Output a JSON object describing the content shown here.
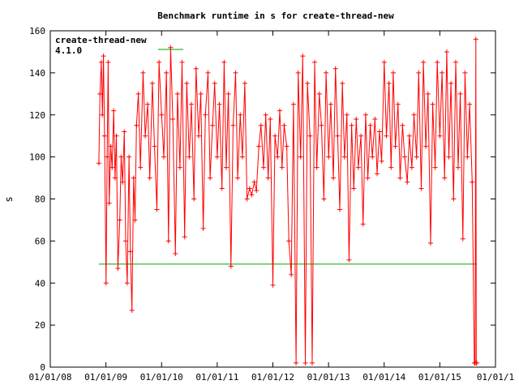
{
  "chart_data": {
    "type": "line",
    "title": "Benchmark runtime in s for create-thread-new",
    "xlabel": "",
    "ylabel": "s",
    "x_tick_labels": [
      "01/01/08",
      "01/01/09",
      "01/01/10",
      "01/01/11",
      "01/01/12",
      "01/01/13",
      "01/01/14",
      "01/01/15",
      "01/01/1"
    ],
    "y_ticks": [
      0,
      20,
      40,
      60,
      80,
      100,
      120,
      140,
      160
    ],
    "xlim": [
      "2008-01-01",
      "2016-01-01"
    ],
    "ylim": [
      0,
      160
    ],
    "grid": false,
    "legend_position": "top-left",
    "legend_title": "create-thread-new",
    "colors": {
      "series_main": "#ff0000",
      "series_reference": "#00a000",
      "axis": "#000000"
    },
    "series": [
      {
        "name": "",
        "color": "#ff0000",
        "marker": "plus",
        "points": [
          [
            "2008-11-15",
            97
          ],
          [
            "2008-11-22",
            130
          ],
          [
            "2008-12-01",
            145
          ],
          [
            "2008-12-08",
            120
          ],
          [
            "2008-12-15",
            148
          ],
          [
            "2008-12-22",
            110
          ],
          [
            "2009-01-01",
            40
          ],
          [
            "2009-01-08",
            100
          ],
          [
            "2009-01-15",
            145
          ],
          [
            "2009-01-22",
            78
          ],
          [
            "2009-02-01",
            105
          ],
          [
            "2009-02-10",
            95
          ],
          [
            "2009-02-20",
            122
          ],
          [
            "2009-03-01",
            90
          ],
          [
            "2009-03-10",
            110
          ],
          [
            "2009-03-20",
            47
          ],
          [
            "2009-04-01",
            70
          ],
          [
            "2009-04-10",
            100
          ],
          [
            "2009-04-20",
            88
          ],
          [
            "2009-05-01",
            112
          ],
          [
            "2009-05-10",
            60
          ],
          [
            "2009-05-20",
            40
          ],
          [
            "2009-06-01",
            100
          ],
          [
            "2009-06-10",
            55
          ],
          [
            "2009-06-20",
            27
          ],
          [
            "2009-07-01",
            90
          ],
          [
            "2009-07-10",
            70
          ],
          [
            "2009-07-20",
            115
          ],
          [
            "2009-08-01",
            130
          ],
          [
            "2009-08-15",
            95
          ],
          [
            "2009-09-01",
            140
          ],
          [
            "2009-09-15",
            110
          ],
          [
            "2009-10-01",
            125
          ],
          [
            "2009-10-15",
            90
          ],
          [
            "2009-11-01",
            135
          ],
          [
            "2009-11-15",
            105
          ],
          [
            "2009-12-01",
            75
          ],
          [
            "2009-12-15",
            145
          ],
          [
            "2010-01-01",
            120
          ],
          [
            "2010-01-15",
            100
          ],
          [
            "2010-02-01",
            140
          ],
          [
            "2010-02-15",
            60
          ],
          [
            "2010-03-01",
            152
          ],
          [
            "2010-03-15",
            118
          ],
          [
            "2010-04-01",
            54
          ],
          [
            "2010-04-15",
            130
          ],
          [
            "2010-05-01",
            95
          ],
          [
            "2010-05-15",
            145
          ],
          [
            "2010-06-01",
            62
          ],
          [
            "2010-06-15",
            135
          ],
          [
            "2010-07-01",
            100
          ],
          [
            "2010-07-15",
            125
          ],
          [
            "2010-08-01",
            80
          ],
          [
            "2010-08-15",
            142
          ],
          [
            "2010-09-01",
            110
          ],
          [
            "2010-09-15",
            130
          ],
          [
            "2010-10-01",
            66
          ],
          [
            "2010-10-15",
            120
          ],
          [
            "2010-11-01",
            140
          ],
          [
            "2010-11-15",
            90
          ],
          [
            "2010-12-01",
            115
          ],
          [
            "2010-12-15",
            135
          ],
          [
            "2011-01-01",
            100
          ],
          [
            "2011-01-15",
            125
          ],
          [
            "2011-02-01",
            85
          ],
          [
            "2011-02-15",
            145
          ],
          [
            "2011-03-01",
            95
          ],
          [
            "2011-03-15",
            130
          ],
          [
            "2011-04-01",
            48
          ],
          [
            "2011-04-15",
            115
          ],
          [
            "2011-05-01",
            140
          ],
          [
            "2011-05-15",
            90
          ],
          [
            "2011-06-01",
            120
          ],
          [
            "2011-06-15",
            100
          ],
          [
            "2011-07-01",
            135
          ],
          [
            "2011-07-15",
            80
          ],
          [
            "2011-08-01",
            85
          ],
          [
            "2011-08-15",
            82
          ],
          [
            "2011-09-01",
            88
          ],
          [
            "2011-09-15",
            84
          ],
          [
            "2011-10-01",
            105
          ],
          [
            "2011-10-15",
            115
          ],
          [
            "2011-11-01",
            95
          ],
          [
            "2011-11-15",
            120
          ],
          [
            "2011-12-01",
            90
          ],
          [
            "2011-12-15",
            118
          ],
          [
            "2012-01-01",
            39
          ],
          [
            "2012-01-15",
            110
          ],
          [
            "2012-02-01",
            100
          ],
          [
            "2012-02-15",
            122
          ],
          [
            "2012-03-01",
            95
          ],
          [
            "2012-03-15",
            115
          ],
          [
            "2012-04-01",
            105
          ],
          [
            "2012-04-15",
            60
          ],
          [
            "2012-05-01",
            44
          ],
          [
            "2012-05-15",
            125
          ],
          [
            "2012-06-01",
            2
          ],
          [
            "2012-06-15",
            140
          ],
          [
            "2012-07-01",
            100
          ],
          [
            "2012-07-15",
            148
          ],
          [
            "2012-08-01",
            2
          ],
          [
            "2012-08-15",
            135
          ],
          [
            "2012-09-01",
            110
          ],
          [
            "2012-09-15",
            2
          ],
          [
            "2012-10-01",
            145
          ],
          [
            "2012-10-15",
            95
          ],
          [
            "2012-11-01",
            130
          ],
          [
            "2012-11-15",
            115
          ],
          [
            "2012-12-01",
            80
          ],
          [
            "2012-12-15",
            140
          ],
          [
            "2013-01-01",
            100
          ],
          [
            "2013-01-15",
            125
          ],
          [
            "2013-02-01",
            90
          ],
          [
            "2013-02-15",
            142
          ],
          [
            "2013-03-01",
            110
          ],
          [
            "2013-03-15",
            75
          ],
          [
            "2013-04-01",
            135
          ],
          [
            "2013-04-15",
            100
          ],
          [
            "2013-05-01",
            120
          ],
          [
            "2013-05-15",
            51
          ],
          [
            "2013-06-01",
            115
          ],
          [
            "2013-06-15",
            85
          ],
          [
            "2013-07-01",
            118
          ],
          [
            "2013-07-15",
            95
          ],
          [
            "2013-08-01",
            110
          ],
          [
            "2013-08-15",
            68
          ],
          [
            "2013-09-01",
            120
          ],
          [
            "2013-09-15",
            90
          ],
          [
            "2013-10-01",
            115
          ],
          [
            "2013-10-15",
            100
          ],
          [
            "2013-11-01",
            118
          ],
          [
            "2013-11-15",
            92
          ],
          [
            "2013-12-01",
            112
          ],
          [
            "2013-12-15",
            98
          ],
          [
            "2014-01-01",
            145
          ],
          [
            "2014-01-15",
            110
          ],
          [
            "2014-02-01",
            135
          ],
          [
            "2014-02-15",
            95
          ],
          [
            "2014-03-01",
            140
          ],
          [
            "2014-03-15",
            105
          ],
          [
            "2014-04-01",
            125
          ],
          [
            "2014-04-15",
            90
          ],
          [
            "2014-05-01",
            115
          ],
          [
            "2014-05-15",
            100
          ],
          [
            "2014-06-01",
            88
          ],
          [
            "2014-06-15",
            110
          ],
          [
            "2014-07-01",
            95
          ],
          [
            "2014-07-15",
            120
          ],
          [
            "2014-08-01",
            100
          ],
          [
            "2014-08-15",
            140
          ],
          [
            "2014-09-01",
            85
          ],
          [
            "2014-09-15",
            145
          ],
          [
            "2014-10-01",
            105
          ],
          [
            "2014-10-15",
            130
          ],
          [
            "2014-11-01",
            59
          ],
          [
            "2014-11-15",
            125
          ],
          [
            "2014-12-01",
            95
          ],
          [
            "2014-12-15",
            145
          ],
          [
            "2015-01-01",
            110
          ],
          [
            "2015-01-15",
            140
          ],
          [
            "2015-02-01",
            90
          ],
          [
            "2015-02-15",
            150
          ],
          [
            "2015-03-01",
            100
          ],
          [
            "2015-03-15",
            135
          ],
          [
            "2015-04-01",
            80
          ],
          [
            "2015-04-15",
            145
          ],
          [
            "2015-05-01",
            95
          ],
          [
            "2015-05-15",
            130
          ],
          [
            "2015-06-01",
            61
          ],
          [
            "2015-06-15",
            140
          ],
          [
            "2015-07-01",
            100
          ],
          [
            "2015-07-15",
            125
          ],
          [
            "2015-08-01",
            88
          ],
          [
            "2015-08-15",
            2
          ],
          [
            "2015-08-20",
            2
          ],
          [
            "2015-08-25",
            156
          ],
          [
            "2015-08-28",
            2
          ],
          [
            "2015-08-31",
            2
          ]
        ]
      },
      {
        "name": "4.1.0",
        "color": "#00a000",
        "points": [
          [
            "2008-11-15",
            49
          ],
          [
            "2015-09-01",
            49
          ]
        ]
      }
    ]
  }
}
